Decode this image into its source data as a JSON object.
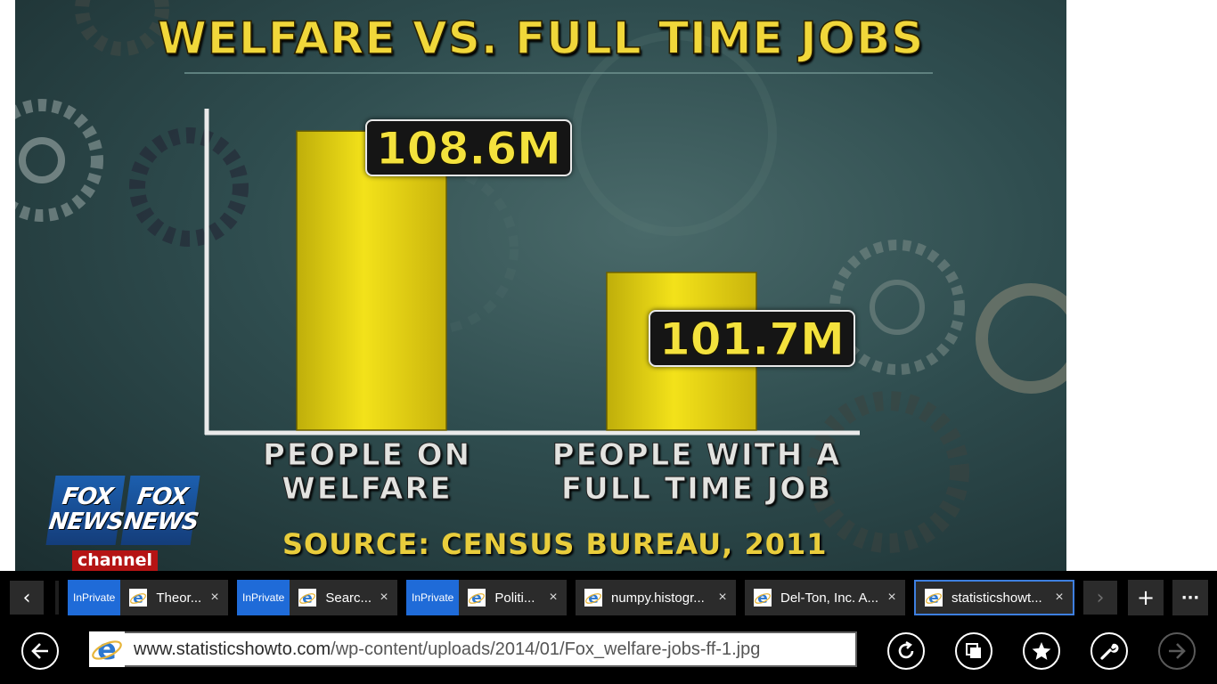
{
  "image": {
    "title": "WELFARE VS. FULL TIME JOBS",
    "source": "SOURCE: CENSUS BUREAU, 2011",
    "logo_lines": [
      "FOX",
      "NEWS"
    ],
    "logo_channel": "channel",
    "colors": {
      "title": "#f1d73a",
      "bars": "#f1df1a",
      "background": "#2f4d4f"
    }
  },
  "chart_data": {
    "type": "bar",
    "title": "WELFARE VS. FULL TIME JOBS",
    "categories": [
      "PEOPLE ON WELFARE",
      "PEOPLE WITH A FULL TIME JOB"
    ],
    "category_lines": [
      [
        "PEOPLE ON",
        "WELFARE"
      ],
      [
        "PEOPLE WITH A",
        "FULL TIME JOB"
      ]
    ],
    "values": [
      108.6,
      101.7
    ],
    "value_labels": [
      "108.6M",
      "101.7M"
    ],
    "ylim": [
      94,
      110
    ],
    "grid": false,
    "legend": "none",
    "source": "SOURCE: CENSUS BUREAU, 2011"
  },
  "tabbar": {
    "prev_icon": "chevron-left-icon",
    "next_icon": "chevron-right-icon",
    "new_tab_icon": "plus-icon",
    "more_icon": "ellipsis-icon",
    "new_tab_glyph": "+",
    "more_glyph": "···",
    "prev_glyph": "‹",
    "next_glyph": "›",
    "tabs": [
      {
        "title": "Theor...",
        "inprivate": "InPrivate",
        "close": "×"
      },
      {
        "title": "Searc...",
        "inprivate": "InPrivate",
        "close": "×"
      },
      {
        "title": "Politi...",
        "inprivate": "InPrivate",
        "close": "×"
      },
      {
        "title": "numpy.histogr...",
        "inprivate": "",
        "close": "×"
      },
      {
        "title": "Del-Ton, Inc. A...",
        "inprivate": "",
        "close": "×"
      },
      {
        "title": "statisticshowt...",
        "inprivate": "",
        "close": "×",
        "active": true
      }
    ],
    "accent": "#1f6bd8"
  },
  "addressbar": {
    "url_domain": "www.statisticshowto.com",
    "url_path": "/wp-content/uploads/2014/01/Fox_welfare-jobs-ff-1.jpg",
    "buttons": [
      "back-icon",
      "refresh-icon",
      "tabs-icon",
      "favorites-icon",
      "tools-icon",
      "forward-icon"
    ]
  }
}
